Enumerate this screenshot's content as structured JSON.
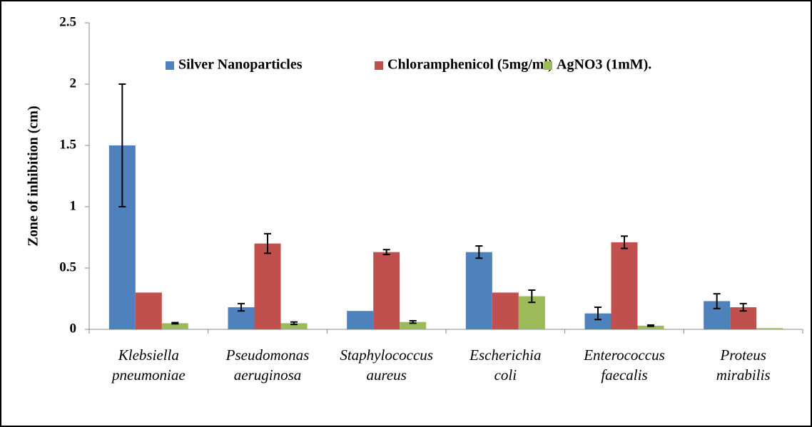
{
  "chart_data": {
    "type": "bar",
    "y_label": "Zone of inhibition (cm)",
    "categories": [
      [
        "Klebsiella",
        "pneumoniae"
      ],
      [
        "Pseudomonas",
        "aeruginosa"
      ],
      [
        "Staphylococcus",
        "aureus"
      ],
      [
        "Escherichia",
        "coli"
      ],
      [
        "Enterococcus",
        "faecalis"
      ],
      [
        "Proteus",
        "mirabilis"
      ]
    ],
    "series": [
      {
        "name": "Silver Nanoparticles",
        "color": "#4f81bd",
        "values": [
          1.5,
          0.18,
          0.15,
          0.63,
          0.13,
          0.23
        ],
        "errors": [
          0.5,
          0.03,
          null,
          0.05,
          0.05,
          0.06
        ]
      },
      {
        "name": "Chloramphenicol (5mg/ml)",
        "color": "#c0504d",
        "values": [
          0.3,
          0.7,
          0.63,
          0.3,
          0.71,
          0.18
        ],
        "errors": [
          null,
          0.08,
          0.02,
          null,
          0.05,
          0.03
        ]
      },
      {
        "name": "AgNO3 (1mM).",
        "color": "#9bbb59",
        "values": [
          0.05,
          0.05,
          0.06,
          0.27,
          0.03,
          0.01
        ],
        "errors": [
          0.005,
          0.01,
          0.01,
          0.05,
          0.005,
          null
        ]
      }
    ],
    "ylim": [
      0,
      2.5
    ],
    "yticks": [
      0,
      0.5,
      1,
      1.5,
      2,
      2.5
    ],
    "legend": "top"
  }
}
